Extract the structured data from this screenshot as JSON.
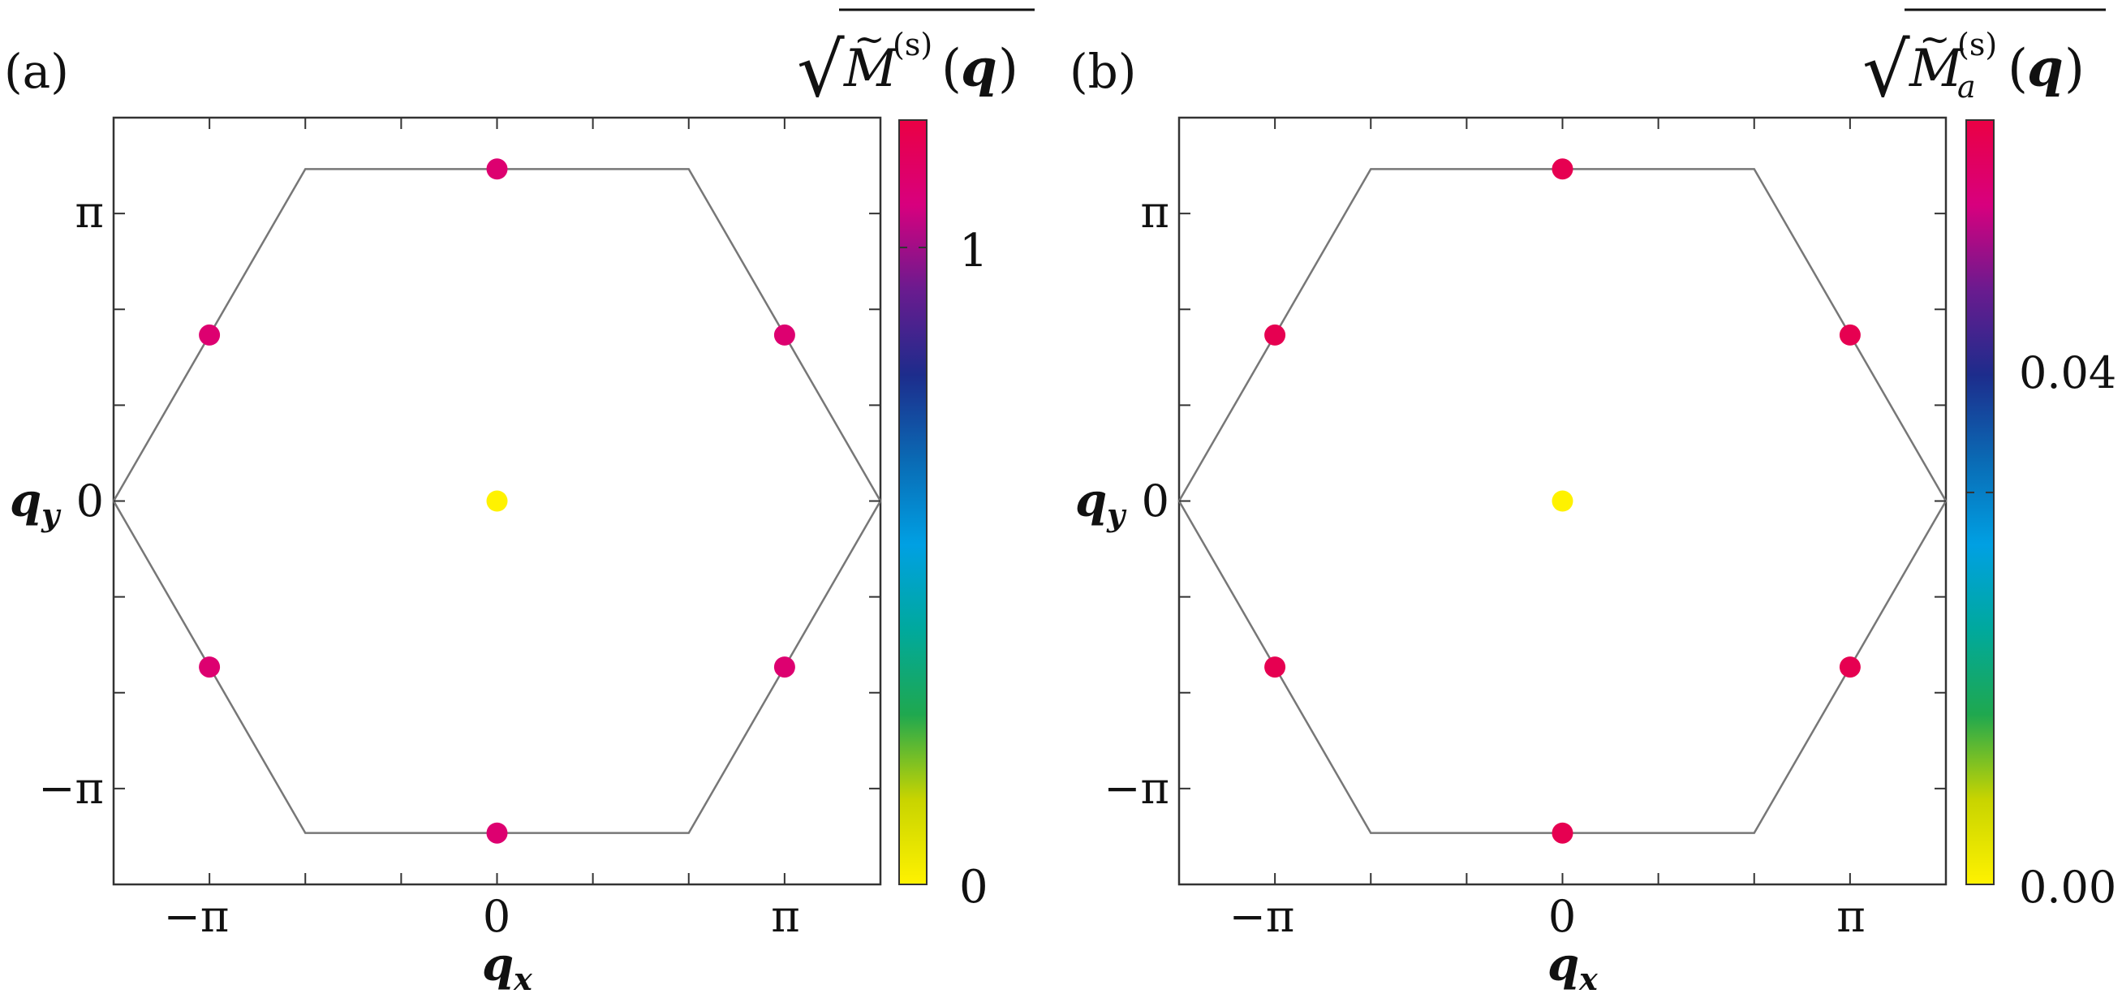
{
  "chart_data": [
    {
      "panel": "(a)",
      "type": "scatter",
      "xlabel_base": "q",
      "xlabel_sub": "x",
      "ylabel_base": "q",
      "ylabel_sub": "y",
      "xlim": [
        -4.189,
        4.189
      ],
      "ylim": [
        -4.189,
        4.189
      ],
      "xticklabels": [
        "−π",
        "0",
        "π"
      ],
      "yticklabels": [
        "π",
        "0",
        "−π"
      ],
      "colorbar": {
        "title_root": "√",
        "title_main": "M",
        "title_tilde": "~",
        "title_sub": "",
        "title_sup": "(s)",
        "title_lp": "(",
        "title_q": "q",
        "title_rp": ")",
        "min": 0,
        "max": 1.2,
        "ticks": [
          0,
          1
        ],
        "ticklabels": [
          "0",
          "1"
        ]
      },
      "brillouin_zone_label": "hexagonal Brillouin zone",
      "points": [
        {
          "x": 0.0,
          "y": 0.0,
          "value": 0.0
        },
        {
          "x": 0.0,
          "y": 3.628,
          "value": 1.1
        },
        {
          "x": 0.0,
          "y": -3.628,
          "value": 1.1
        },
        {
          "x": 3.142,
          "y": 1.814,
          "value": 1.1
        },
        {
          "x": 3.142,
          "y": -1.814,
          "value": 1.1
        },
        {
          "x": -3.142,
          "y": 1.814,
          "value": 1.1
        },
        {
          "x": -3.142,
          "y": -1.814,
          "value": 1.1
        }
      ]
    },
    {
      "panel": "(b)",
      "type": "scatter",
      "xlabel_base": "q",
      "xlabel_sub": "x",
      "ylabel_base": "q",
      "ylabel_sub": "y",
      "xlim": [
        -4.189,
        4.189
      ],
      "ylim": [
        -4.189,
        4.189
      ],
      "xticklabels": [
        "−π",
        "0",
        "π"
      ],
      "yticklabels": [
        "π",
        "0",
        "−π"
      ],
      "colorbar": {
        "title_root": "√",
        "title_main": "M",
        "title_tilde": "~",
        "title_sub": "a",
        "title_sup": "(s)",
        "title_lp": "(",
        "title_q": "q",
        "title_rp": ")",
        "min": 0,
        "max": 0.078,
        "ticks": [
          0.0,
          0.04
        ],
        "ticklabels": [
          "0.00",
          "0.04"
        ]
      },
      "brillouin_zone_label": "hexagonal Brillouin zone",
      "points": [
        {
          "x": 0.0,
          "y": 0.0,
          "value": 0.0
        },
        {
          "x": 0.0,
          "y": 3.628,
          "value": 0.076
        },
        {
          "x": 0.0,
          "y": -3.628,
          "value": 0.076
        },
        {
          "x": 3.142,
          "y": 1.814,
          "value": 0.076
        },
        {
          "x": 3.142,
          "y": -1.814,
          "value": 0.076
        },
        {
          "x": -3.142,
          "y": 1.814,
          "value": 0.076
        },
        {
          "x": -3.142,
          "y": -1.814,
          "value": 0.076
        }
      ]
    }
  ],
  "colormap": [
    "#fff200",
    "#c8d400",
    "#1fa84f",
    "#00a99d",
    "#00a0e3",
    "#0a6ab4",
    "#1d2c8c",
    "#6a1b8f",
    "#d8007e",
    "#ea0044"
  ],
  "colors": {
    "axis": "#333333",
    "hexagon": "#777777",
    "text": "#111111"
  }
}
